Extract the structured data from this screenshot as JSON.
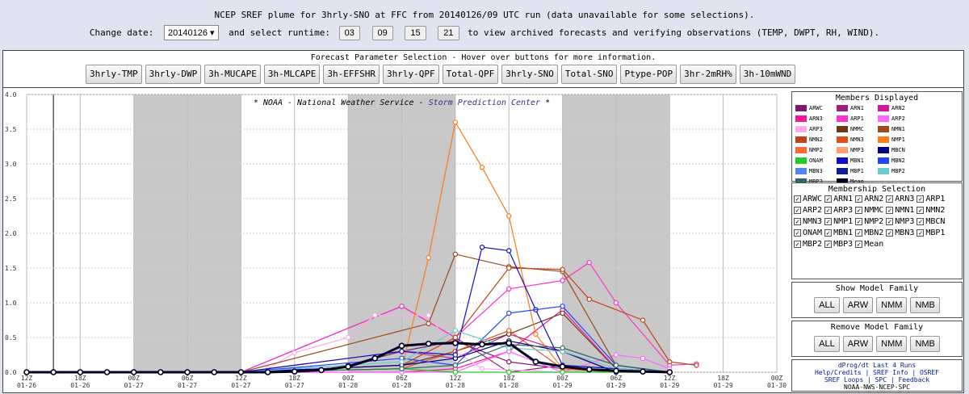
{
  "header": {
    "title": "NCEP SREF plume for 3hrly-SNO at FFC from 20140126/09 UTC run (data unavailable for some selections).",
    "change_date_label": "Change date:",
    "date_value": "20140126 ▾",
    "select_runtime_label": "and select runtime:",
    "runtimes": [
      "03",
      "09",
      "15",
      "21"
    ],
    "tail_text": "to view archived forecasts and verifying observations (TEMP, DWPT, RH, WIND)."
  },
  "params": {
    "title": "Forecast Parameter Selection - Hover over buttons for more information.",
    "buttons": [
      "3hrly-TMP",
      "3hrly-DWP",
      "3h-MUCAPE",
      "3h-MLCAPE",
      "3h-EFFSHR",
      "3hrly-QPF",
      "Total-QPF",
      "3hrly-SNO",
      "Total-SNO",
      "Ptype-POP",
      "3hr-2mRH%",
      "3h-10mWND"
    ]
  },
  "credit": {
    "prefix": "* NOAA - National Weather Service - ",
    "spc": "Storm Prediction Center",
    "suffix": " *"
  },
  "members": {
    "title": "Members Displayed",
    "items": [
      {
        "name": "ARWC",
        "color": "#7d1b6b"
      },
      {
        "name": "ARN1",
        "color": "#9b1f7f"
      },
      {
        "name": "ARN2",
        "color": "#cc1a9a"
      },
      {
        "name": "ARN3",
        "color": "#ff1493"
      },
      {
        "name": "ARP1",
        "color": "#ff33cc"
      },
      {
        "name": "ARP2",
        "color": "#ff66ff"
      },
      {
        "name": "ARP3",
        "color": "#ffaaee"
      },
      {
        "name": "NMMC",
        "color": "#6b3a12"
      },
      {
        "name": "NMN1",
        "color": "#9c4a1a"
      },
      {
        "name": "NMN2",
        "color": "#c0441a"
      },
      {
        "name": "NMN3",
        "color": "#e0501a"
      },
      {
        "name": "NMP1",
        "color": "#ff7a1a"
      },
      {
        "name": "NMP2",
        "color": "#ff6633"
      },
      {
        "name": "NMP3",
        "color": "#ffa070"
      },
      {
        "name": "MBCN",
        "color": "#000080"
      },
      {
        "name": "ONAM",
        "color": "#22cc22"
      },
      {
        "name": "MBN1",
        "color": "#1010c0"
      },
      {
        "name": "MBN2",
        "color": "#2244ff"
      },
      {
        "name": "MBN3",
        "color": "#5588ee"
      },
      {
        "name": "MBP1",
        "color": "#102090"
      },
      {
        "name": "MBP2",
        "color": "#66cccc"
      },
      {
        "name": "MBP3",
        "color": "#336666"
      },
      {
        "name": "Mean",
        "color": "#000022"
      }
    ]
  },
  "membership": {
    "title": "Membership Selection",
    "items": [
      "ARWC",
      "ARN1",
      "ARN2",
      "ARN3",
      "ARP1",
      "ARP2",
      "ARP3",
      "NMMC",
      "NMN1",
      "NMN2",
      "NMN3",
      "NMP1",
      "NMP2",
      "NMP3",
      "MBCN",
      "ONAM",
      "MBN1",
      "MBN2",
      "MBN3",
      "MBP1",
      "MBP2",
      "MBP3",
      "Mean"
    ]
  },
  "show_family": {
    "title": "Show Model Family",
    "buttons": [
      "ALL",
      "ARW",
      "NMM",
      "NMB"
    ]
  },
  "remove_family": {
    "title": "Remove Model Family",
    "buttons": [
      "ALL",
      "ARW",
      "NMM",
      "NMB"
    ]
  },
  "links": {
    "line1": "dProg/dt Last 4 Runs",
    "line2": "Help/Credits | SREF Info | OSREF",
    "line3": "SREF Loops | SPC | Feedback",
    "footer": "NOAA-NWS-NCEP-SPC"
  },
  "chart_data": {
    "type": "line",
    "ylim": [
      0.0,
      4.0
    ],
    "yticks": [
      "0.0",
      "0.5",
      "1.0",
      "1.5",
      "2.0",
      "2.5",
      "3.0",
      "3.5",
      "4.0"
    ],
    "xticks": [
      [
        "12Z",
        "01-26"
      ],
      [
        "18Z",
        "01-26"
      ],
      [
        "00Z",
        "01-27"
      ],
      [
        "06Z",
        "01-27"
      ],
      [
        "12Z",
        "01-27"
      ],
      [
        "18Z",
        "01-27"
      ],
      [
        "00Z",
        "01-28"
      ],
      [
        "06Z",
        "01-28"
      ],
      [
        "12Z",
        "01-28"
      ],
      [
        "18Z",
        "01-28"
      ],
      [
        "00Z",
        "01-29"
      ],
      [
        "06Z",
        "01-29"
      ],
      [
        "12Z",
        "01-29"
      ],
      [
        "18Z",
        "01-29"
      ],
      [
        "00Z",
        "01-30"
      ]
    ],
    "series": [
      {
        "name": "ARWC",
        "color": "#7d1b6b",
        "values": [
          [
            1.0,
            0
          ],
          [
            1.5,
            0.1
          ],
          [
            1.75,
            0.3
          ],
          [
            2.0,
            0.45
          ],
          [
            2.25,
            0.15
          ],
          [
            2.5,
            0.05
          ],
          [
            3.0,
            0
          ]
        ]
      },
      {
        "name": "ARN1",
        "color": "#9b1f7f",
        "values": [
          [
            1.0,
            0
          ],
          [
            1.75,
            0.95
          ],
          [
            2.0,
            0.5
          ],
          [
            2.25,
            0
          ],
          [
            2.5,
            0.1
          ],
          [
            3.0,
            0
          ]
        ]
      },
      {
        "name": "ARN2",
        "color": "#cc1a9a",
        "values": [
          [
            1.0,
            0
          ],
          [
            1.75,
            0.3
          ],
          [
            2.0,
            0.2
          ],
          [
            2.25,
            0.55
          ],
          [
            2.5,
            0.3
          ],
          [
            2.75,
            0
          ],
          [
            3.0,
            0
          ]
        ]
      },
      {
        "name": "ARN3",
        "color": "#ff1493",
        "values": [
          [
            1.0,
            0
          ],
          [
            1.75,
            0
          ],
          [
            2.0,
            0.05
          ],
          [
            2.25,
            0.3
          ],
          [
            2.5,
            0.9
          ],
          [
            2.75,
            0.05
          ],
          [
            3.0,
            0
          ]
        ]
      },
      {
        "name": "ARP1",
        "color": "#ff33cc",
        "values": [
          [
            1.0,
            0
          ],
          [
            1.75,
            0.95
          ],
          [
            2.0,
            0.5
          ],
          [
            2.25,
            1.2
          ],
          [
            2.5,
            1.32
          ],
          [
            2.625,
            1.58
          ],
          [
            2.75,
            1.0
          ],
          [
            3.0,
            0.1
          ],
          [
            3.125,
            0.12
          ]
        ]
      },
      {
        "name": "ARP2",
        "color": "#ff66ff",
        "values": [
          [
            1.0,
            0
          ],
          [
            1.75,
            0
          ],
          [
            2.0,
            0
          ],
          [
            2.25,
            0.3
          ],
          [
            2.5,
            0
          ],
          [
            2.75,
            0.25
          ],
          [
            2.875,
            0.2
          ],
          [
            3.0,
            0.05
          ]
        ]
      },
      {
        "name": "ARP3",
        "color": "#ffaaee",
        "values": [
          [
            1.0,
            0
          ],
          [
            1.125,
            0.05
          ],
          [
            1.25,
            0.28
          ],
          [
            1.5,
            0.5
          ],
          [
            1.625,
            0.82
          ],
          [
            1.875,
            0.82
          ],
          [
            2.0,
            0.3
          ],
          [
            2.125,
            0.05
          ],
          [
            2.5,
            0
          ],
          [
            3.0,
            0
          ]
        ]
      },
      {
        "name": "NMMC",
        "color": "#6b3a12",
        "values": [
          [
            1.0,
            0
          ],
          [
            1.75,
            0.1
          ],
          [
            2.0,
            0.3
          ],
          [
            2.25,
            0.55
          ],
          [
            2.5,
            0.85
          ],
          [
            2.75,
            0.05
          ],
          [
            3.0,
            0
          ]
        ]
      },
      {
        "name": "NMN1",
        "color": "#9c4a1a",
        "values": [
          [
            1.0,
            0
          ],
          [
            1.875,
            0.7
          ],
          [
            2.0,
            1.7
          ],
          [
            2.25,
            1.52
          ],
          [
            2.5,
            1.45
          ],
          [
            2.75,
            0.1
          ],
          [
            3.0,
            0
          ]
        ]
      },
      {
        "name": "NMN2",
        "color": "#c0441a",
        "values": [
          [
            1.0,
            0
          ],
          [
            1.75,
            0.1
          ],
          [
            2.0,
            0.5
          ],
          [
            2.25,
            1.5
          ],
          [
            2.5,
            1.48
          ],
          [
            2.625,
            1.05
          ],
          [
            2.875,
            0.75
          ],
          [
            3.0,
            0.15
          ],
          [
            3.125,
            0.1
          ]
        ]
      },
      {
        "name": "NMN3",
        "color": "#e0501a",
        "values": [
          [
            1.0,
            0
          ],
          [
            1.75,
            0.05
          ],
          [
            2.0,
            0.3
          ],
          [
            2.25,
            0.6
          ],
          [
            2.5,
            0.05
          ],
          [
            2.75,
            0
          ],
          [
            3.0,
            0
          ]
        ]
      },
      {
        "name": "NMP1",
        "color": "#ff7a1a",
        "values": [
          [
            1.0,
            0
          ],
          [
            1.75,
            0.05
          ],
          [
            1.875,
            1.65
          ],
          [
            2.0,
            3.6
          ],
          [
            2.125,
            2.95
          ],
          [
            2.25,
            2.25
          ],
          [
            2.375,
            0.55
          ],
          [
            2.5,
            0.05
          ],
          [
            3.0,
            0
          ]
        ]
      },
      {
        "name": "MBCN",
        "color": "#000080",
        "values": [
          [
            1.0,
            0
          ],
          [
            1.75,
            0.1
          ],
          [
            2.0,
            0.2
          ],
          [
            2.25,
            0.45
          ],
          [
            2.5,
            0.3
          ],
          [
            2.75,
            0
          ],
          [
            3.0,
            0
          ]
        ]
      },
      {
        "name": "ONAM",
        "color": "#22cc22",
        "values": [
          [
            1.0,
            0
          ],
          [
            1.75,
            0.05
          ],
          [
            2.0,
            0
          ],
          [
            2.25,
            0
          ],
          [
            2.5,
            0
          ],
          [
            3.0,
            0
          ]
        ]
      },
      {
        "name": "MBN1",
        "color": "#1010c0",
        "values": [
          [
            1.0,
            0
          ],
          [
            1.75,
            0.3
          ],
          [
            2.0,
            0.25
          ],
          [
            2.125,
            1.8
          ],
          [
            2.25,
            1.75
          ],
          [
            2.375,
            0.9
          ],
          [
            2.5,
            0.1
          ],
          [
            3.0,
            0
          ]
        ]
      },
      {
        "name": "MBN2",
        "color": "#2244ff",
        "values": [
          [
            1.0,
            0
          ],
          [
            1.75,
            0.2
          ],
          [
            2.0,
            0.1
          ],
          [
            2.25,
            0.85
          ],
          [
            2.5,
            0.95
          ],
          [
            2.75,
            0.1
          ],
          [
            3.0,
            0
          ]
        ]
      },
      {
        "name": "MBP2",
        "color": "#66cccc",
        "values": [
          [
            1.0,
            0
          ],
          [
            1.75,
            0.15
          ],
          [
            2.0,
            0.6
          ],
          [
            2.25,
            0.35
          ],
          [
            2.5,
            0.3
          ],
          [
            2.75,
            0.05
          ],
          [
            3.0,
            0
          ]
        ]
      },
      {
        "name": "MBP3",
        "color": "#336666",
        "values": [
          [
            1.0,
            0
          ],
          [
            1.75,
            0.05
          ],
          [
            2.0,
            0.1
          ],
          [
            2.25,
            0.4
          ],
          [
            2.5,
            0.35
          ],
          [
            2.75,
            0.1
          ],
          [
            3.0,
            0
          ]
        ]
      },
      {
        "name": "Mean",
        "color": "#000022",
        "values": [
          [
            0.0,
            0
          ],
          [
            0.125,
            0
          ],
          [
            0.25,
            0
          ],
          [
            0.375,
            0
          ],
          [
            0.5,
            0
          ],
          [
            0.625,
            0
          ],
          [
            0.75,
            0
          ],
          [
            0.875,
            0
          ],
          [
            1.0,
            0
          ],
          [
            1.125,
            0
          ],
          [
            1.25,
            0.01
          ],
          [
            1.375,
            0.03
          ],
          [
            1.5,
            0.08
          ],
          [
            1.625,
            0.2
          ],
          [
            1.75,
            0.38
          ],
          [
            1.875,
            0.41
          ],
          [
            2.0,
            0.42
          ],
          [
            2.125,
            0.4
          ],
          [
            2.25,
            0.42
          ],
          [
            2.375,
            0.15
          ],
          [
            2.5,
            0.08
          ],
          [
            2.625,
            0.04
          ],
          [
            2.75,
            0.02
          ],
          [
            2.875,
            0.01
          ],
          [
            3.0,
            0
          ]
        ]
      }
    ]
  }
}
